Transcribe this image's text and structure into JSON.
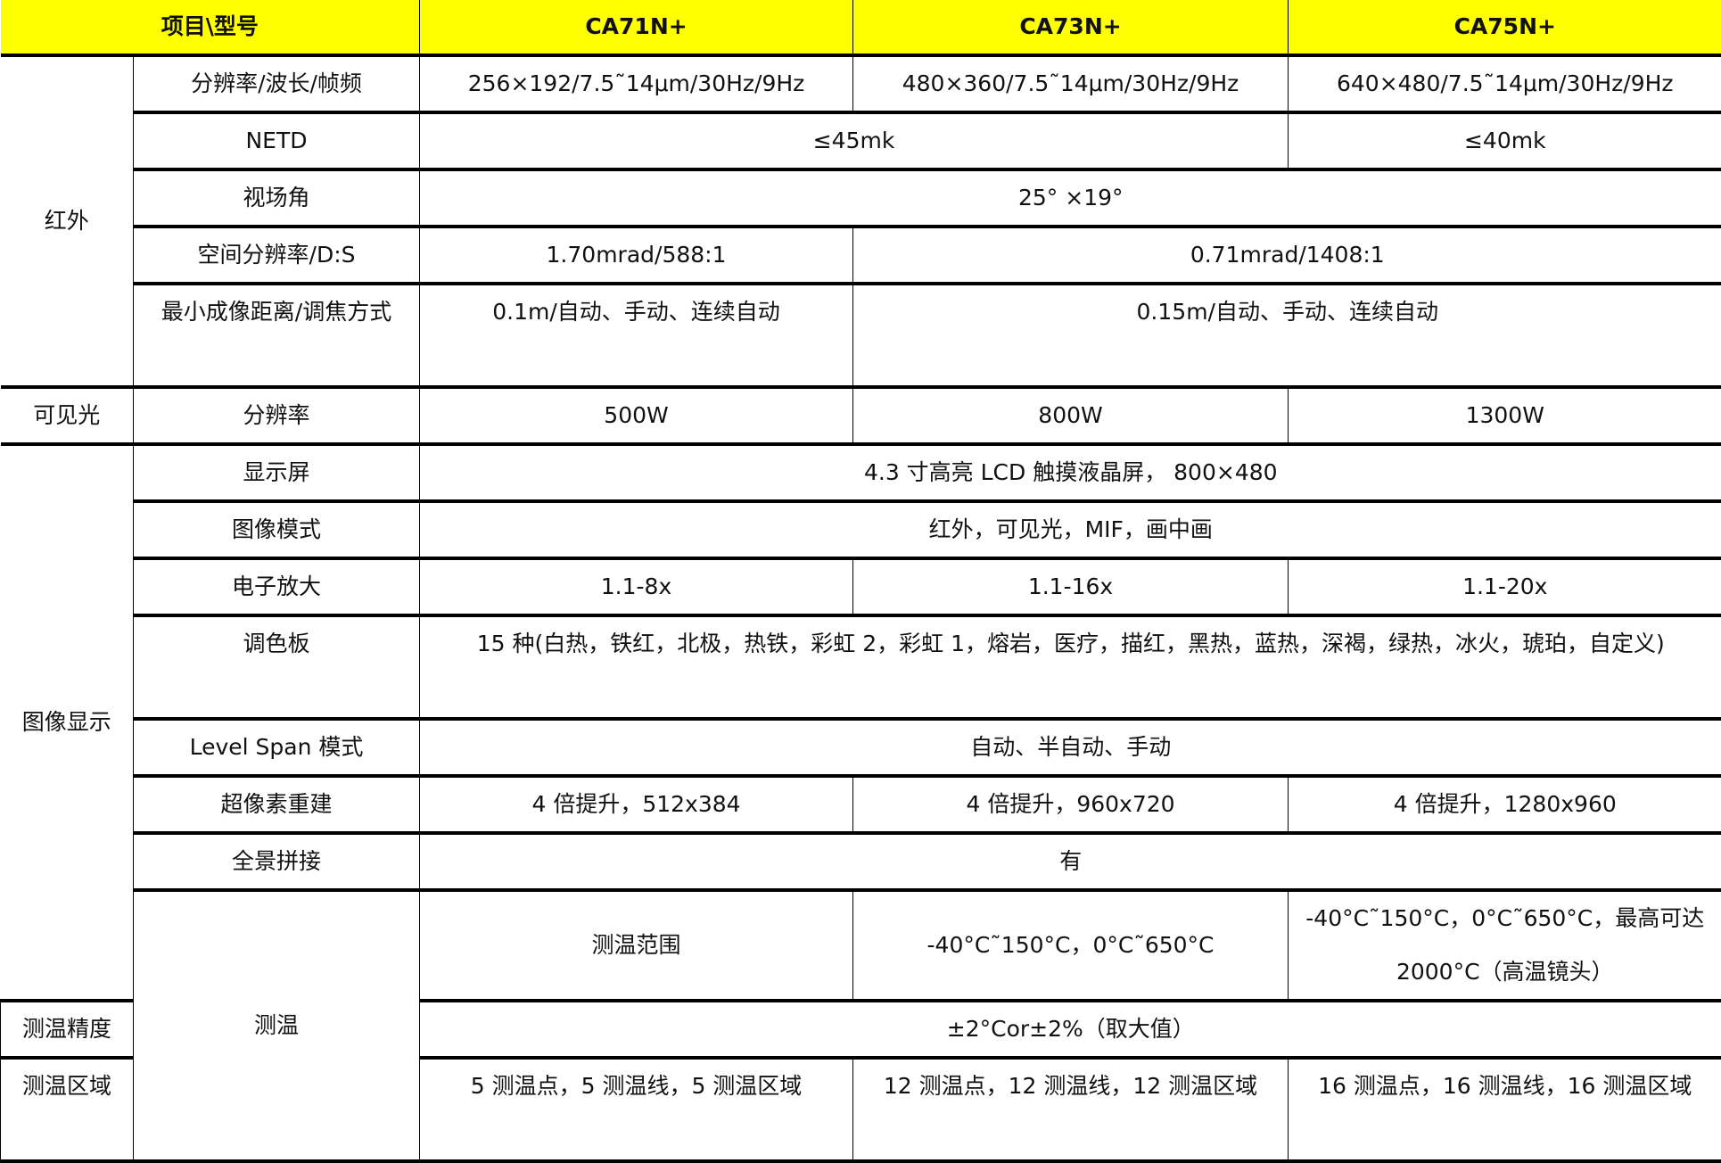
{
  "header": {
    "item": "项目\\型号",
    "models": [
      "CA71N+",
      "CA73N+",
      "CA75N+"
    ]
  },
  "groups": {
    "ir": "红外",
    "visible": "可见光",
    "display": "图像显示",
    "temp": "测温"
  },
  "rows": {
    "resolution": {
      "label": "分辨率/波长/帧频",
      "v": [
        "256×192/7.5˜14μm/30Hz/9Hz",
        "480×360/7.5˜14μm/30Hz/9Hz",
        "640×480/7.5˜14μm/30Hz/9Hz"
      ]
    },
    "netd": {
      "label": "NETD",
      "v": [
        "≤45mk",
        "≤40mk"
      ]
    },
    "fov": {
      "label": "视场角",
      "v": [
        "25° ×19°"
      ]
    },
    "spatial": {
      "label": "空间分辨率/D:S",
      "v": [
        "1.70mrad/588:1",
        "0.71mrad/1408:1"
      ]
    },
    "focus": {
      "label": "最小成像距离/调焦方式",
      "v": [
        "0.1m/自动、手动、连续自动",
        "0.15m/自动、手动、连续自动"
      ]
    },
    "vis_res": {
      "label": "分辨率",
      "v": [
        "500W",
        "800W",
        "1300W"
      ]
    },
    "screen": {
      "label": "显示屏",
      "v": [
        "4.3 寸高亮 LCD 触摸液晶屏， 800×480"
      ]
    },
    "image_mode": {
      "label": "图像模式",
      "v": [
        "红外，可见光，MIF，画中画"
      ]
    },
    "zoom": {
      "label": "电子放大",
      "v": [
        "1.1-8x",
        "1.1-16x",
        "1.1-20x"
      ]
    },
    "palette": {
      "label": "调色板",
      "v": [
        "15 种(白热，铁红，北极，热铁，彩虹 2，彩虹 1，熔岩，医疗，描红，黑热，蓝热，深褐，绿热，冰火，琥珀，自定义)"
      ]
    },
    "level_span": {
      "label": "Level Span 模式",
      "v": [
        "自动、半自动、手动"
      ]
    },
    "super_res": {
      "label": "超像素重建",
      "v": [
        "4 倍提升，512x384",
        "4 倍提升，960x720",
        "4 倍提升，1280x960"
      ]
    },
    "panorama": {
      "label": "全景拼接",
      "v": [
        "有"
      ]
    },
    "temp_range": {
      "label": "测温范围",
      "v": [
        "-40°C˜150°C，0°C˜650°C",
        "-40°C˜150°C，0°C˜650°C，最高可达 2000°C（高温镜头）"
      ]
    },
    "accuracy": {
      "label": "测温精度",
      "v": [
        "±2°Cor±2%（取大值）"
      ]
    },
    "regions": {
      "label": "测温区域",
      "v": [
        "5 测温点，5 测温线，5 测温区域",
        "12 测温点，12 测温线，12 测温区域",
        "16 测温点，16 测温线，16 测温区域"
      ]
    }
  },
  "colors": {
    "header_bg": "#ffff00"
  }
}
